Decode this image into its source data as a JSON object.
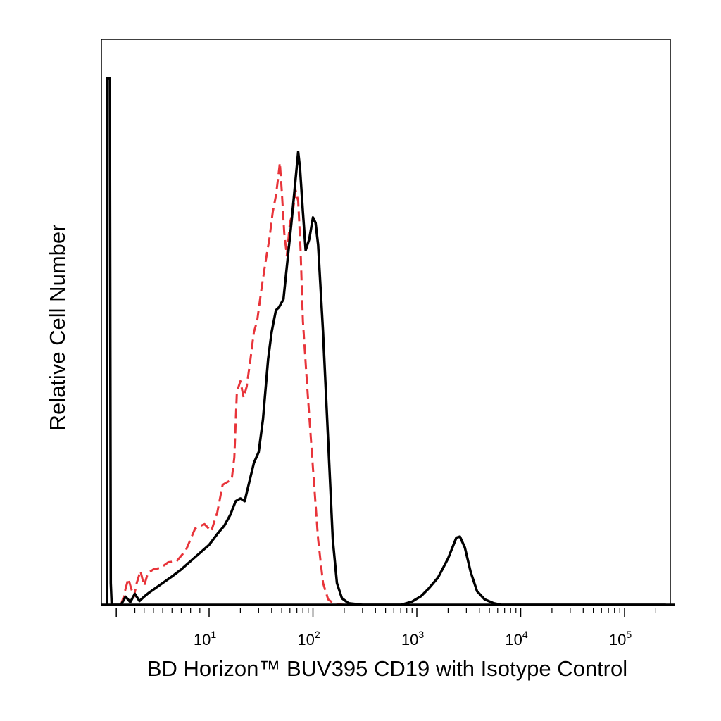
{
  "chart_data": {
    "type": "line",
    "title": "",
    "xlabel": "BD Horizon™ BUV395 CD19 with Isotype Control",
    "ylabel": "Relative Cell Number",
    "x_scale": "biexponential (log above 10)",
    "xlim": [
      -1,
      250000
    ],
    "ylim": [
      0,
      100
    ],
    "grid": false,
    "legend": "none",
    "x_ticks": [
      {
        "base": "10",
        "exp": "1",
        "value": 10
      },
      {
        "base": "10",
        "exp": "2",
        "value": 100
      },
      {
        "base": "10",
        "exp": "3",
        "value": 1000
      },
      {
        "base": "10",
        "exp": "4",
        "value": 10000
      },
      {
        "base": "10",
        "exp": "5",
        "value": 100000
      }
    ],
    "series": [
      {
        "color": "#000000",
        "dash": "solid",
        "points": [
          [
            -1,
            0
          ],
          [
            -1,
            96.5
          ],
          [
            -0.7,
            96.5
          ],
          [
            -0.6,
            4
          ],
          [
            -0.5,
            0
          ],
          [
            0.5,
            0
          ],
          [
            1.0,
            1.5
          ],
          [
            1.5,
            0.5
          ],
          [
            2.0,
            2.0
          ],
          [
            2.5,
            0.7
          ],
          [
            3.0,
            1.5
          ],
          [
            3.5,
            2.2
          ],
          [
            4.0,
            2.8
          ],
          [
            5.0,
            4.0
          ],
          [
            6.0,
            5.2
          ],
          [
            7.0,
            6.5
          ],
          [
            8.0,
            8.0
          ],
          [
            10.0,
            11.0
          ],
          [
            12.0,
            13.0
          ],
          [
            14.0,
            14.5
          ],
          [
            16.0,
            16.5
          ],
          [
            18.0,
            19.0
          ],
          [
            20.0,
            19.5
          ],
          [
            22.0,
            19.0
          ],
          [
            24.0,
            22.0
          ],
          [
            27.0,
            26.0
          ],
          [
            30.0,
            28.0
          ],
          [
            33.0,
            34.0
          ],
          [
            37.0,
            45.0
          ],
          [
            40.0,
            50.0
          ],
          [
            44.0,
            54.0
          ],
          [
            47.0,
            54.5
          ],
          [
            52.0,
            56.0
          ],
          [
            56.0,
            62.0
          ],
          [
            62.0,
            70.0
          ],
          [
            68.0,
            78.0
          ],
          [
            72.0,
            83.0
          ],
          [
            75.0,
            80.0
          ],
          [
            80.0,
            72.0
          ],
          [
            85.0,
            65.0
          ],
          [
            92.0,
            67.0
          ],
          [
            100.0,
            71.0
          ],
          [
            106.0,
            70.0
          ],
          [
            112.0,
            66.0
          ],
          [
            125.0,
            50.0
          ],
          [
            140.0,
            30.0
          ],
          [
            155.0,
            12.0
          ],
          [
            170.0,
            4.0
          ],
          [
            190.0,
            1.2
          ],
          [
            220.0,
            0.3
          ],
          [
            300.0,
            0
          ],
          [
            700.0,
            0
          ],
          [
            900.0,
            0.6
          ],
          [
            1100.0,
            1.6
          ],
          [
            1300.0,
            3.0
          ],
          [
            1600.0,
            5.0
          ],
          [
            2000.0,
            8.5
          ],
          [
            2400.0,
            12.3
          ],
          [
            2600.0,
            12.5
          ],
          [
            2900.0,
            10.5
          ],
          [
            3300.0,
            6.0
          ],
          [
            3800.0,
            2.5
          ],
          [
            4500.0,
            1.0
          ],
          [
            5500.0,
            0.3
          ],
          [
            6500.0,
            0
          ],
          [
            250000.0,
            0
          ]
        ]
      },
      {
        "color": "#e8343a",
        "dash": "dashed",
        "points": [
          [
            0.5,
            0
          ],
          [
            0.8,
            1.5
          ],
          [
            1.0,
            3.0
          ],
          [
            1.3,
            4.8
          ],
          [
            1.6,
            3.0
          ],
          [
            1.9,
            1.5
          ],
          [
            2.2,
            4.0
          ],
          [
            2.6,
            6.2
          ],
          [
            3.0,
            3.5
          ],
          [
            3.4,
            5.8
          ],
          [
            4.0,
            6.5
          ],
          [
            4.8,
            6.8
          ],
          [
            5.6,
            7.8
          ],
          [
            6.5,
            8.0
          ],
          [
            7.5,
            10.0
          ],
          [
            8.5,
            14.0
          ],
          [
            9.5,
            14.8
          ],
          [
            10.5,
            13.5
          ],
          [
            12.0,
            17.0
          ],
          [
            13.5,
            22.0
          ],
          [
            15.0,
            22.5
          ],
          [
            16.5,
            23.0
          ],
          [
            17.5,
            27.0
          ],
          [
            18.5,
            39.0
          ],
          [
            20.0,
            41.0
          ],
          [
            21.5,
            38.0
          ],
          [
            23.0,
            40.0
          ],
          [
            25.0,
            45.0
          ],
          [
            27.0,
            50.0
          ],
          [
            29.0,
            52.0
          ],
          [
            32.0,
            58.0
          ],
          [
            35.0,
            63.0
          ],
          [
            38.0,
            67.0
          ],
          [
            41.0,
            72.0
          ],
          [
            44.0,
            75.0
          ],
          [
            46.0,
            78.0
          ],
          [
            48.0,
            81.0
          ],
          [
            50.0,
            76.0
          ],
          [
            53.0,
            68.0
          ],
          [
            56.0,
            64.0
          ],
          [
            60.0,
            70.0
          ],
          [
            64.0,
            72.0
          ],
          [
            68.0,
            76.0
          ],
          [
            72.0,
            74.0
          ],
          [
            76.0,
            65.0
          ],
          [
            80.0,
            52.0
          ],
          [
            88.0,
            40.0
          ],
          [
            100.0,
            25.0
          ],
          [
            112.0,
            12.0
          ],
          [
            125.0,
            4.0
          ],
          [
            140.0,
            1.0
          ],
          [
            160.0,
            0.2
          ],
          [
            200.0,
            0
          ],
          [
            6000.0,
            0
          ]
        ]
      }
    ]
  }
}
